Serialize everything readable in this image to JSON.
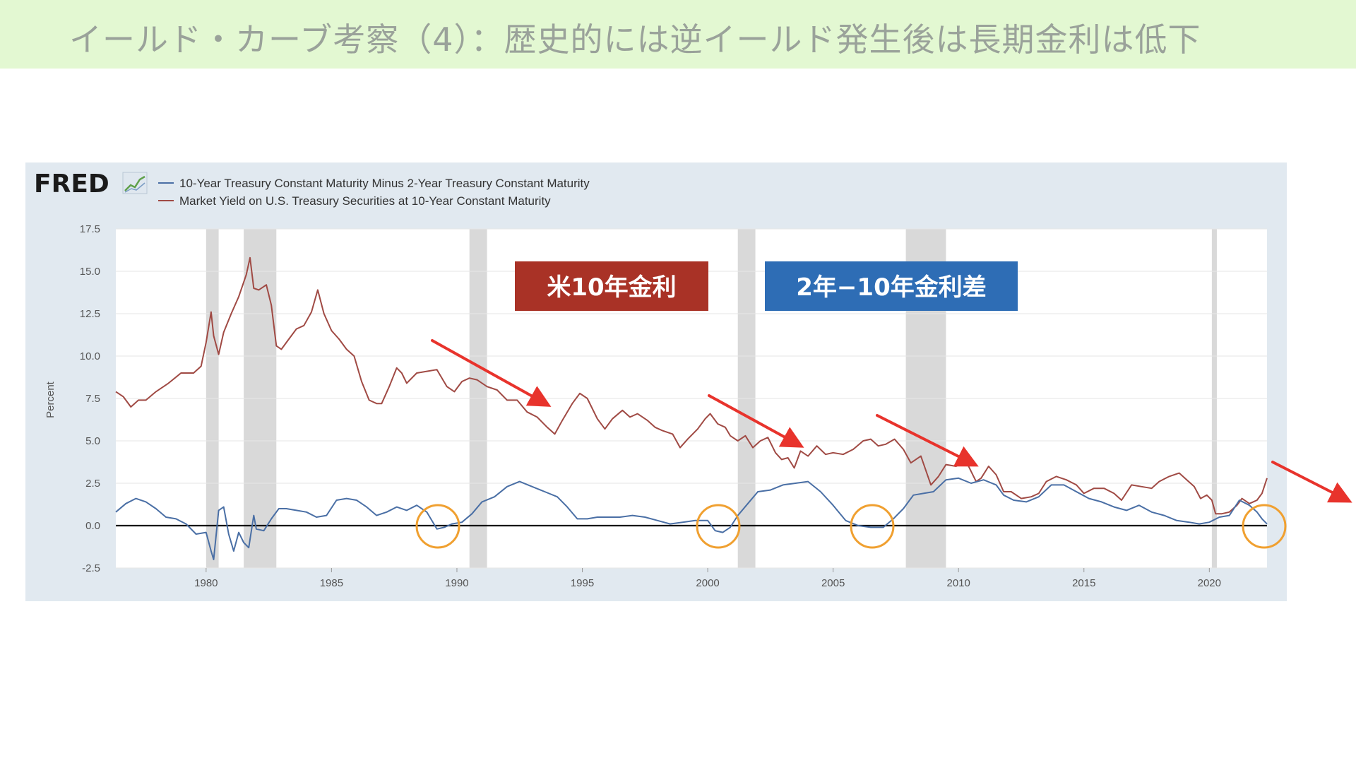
{
  "slide": {
    "title": "イールド・カーブ考察（4）：歴史的には逆イールド発生後は長期金利は低下"
  },
  "logo": {
    "text": "FRED"
  },
  "callouts": {
    "ten_year": {
      "text": "米10年金利",
      "color": "#a93226"
    },
    "spread": {
      "text": "2年−10年金利差",
      "color": "#2e6db5"
    }
  },
  "colors": {
    "ten_year": "#a04a44",
    "spread": "#4a6fa5",
    "recession": "#d9d9d9",
    "arrow": "#e8332c",
    "circle": "#f0a030",
    "zero_line": "#000000"
  },
  "chart_data": {
    "type": "line",
    "title": "",
    "xlabel": "",
    "ylabel": "Percent",
    "xlim": [
      1976.4,
      2022.3
    ],
    "ylim": [
      -2.5,
      17.5
    ],
    "x_ticks": [
      1980,
      1985,
      1990,
      1995,
      2000,
      2005,
      2010,
      2015,
      2020
    ],
    "y_ticks": [
      -2.5,
      0.0,
      2.5,
      5.0,
      7.5,
      10.0,
      12.5,
      15.0,
      17.5
    ],
    "y_tick_labels": [
      "-2.5",
      "0.0",
      "2.5",
      "5.0",
      "7.5",
      "10.0",
      "12.5",
      "15.0",
      "17.5"
    ],
    "legend": "top-left",
    "grid": true,
    "recessions": [
      [
        1980.0,
        1980.5
      ],
      [
        1981.5,
        1982.8
      ],
      [
        1990.5,
        1991.2
      ],
      [
        2001.2,
        2001.9
      ],
      [
        2007.9,
        2009.5
      ],
      [
        2020.1,
        2020.3
      ]
    ],
    "series": [
      {
        "name": "10-Year Treasury Constant Maturity Minus 2-Year Treasury Constant Maturity",
        "points": [
          [
            1976.4,
            0.8
          ],
          [
            1976.8,
            1.3
          ],
          [
            1977.2,
            1.6
          ],
          [
            1977.6,
            1.4
          ],
          [
            1978.0,
            1.0
          ],
          [
            1978.4,
            0.5
          ],
          [
            1978.8,
            0.4
          ],
          [
            1979.2,
            0.1
          ],
          [
            1979.6,
            -0.5
          ],
          [
            1980.0,
            -0.4
          ],
          [
            1980.2,
            -1.5
          ],
          [
            1980.3,
            -2.0
          ],
          [
            1980.5,
            0.9
          ],
          [
            1980.7,
            1.1
          ],
          [
            1980.9,
            -0.5
          ],
          [
            1981.1,
            -1.5
          ],
          [
            1981.3,
            -0.4
          ],
          [
            1981.5,
            -1.0
          ],
          [
            1981.7,
            -1.3
          ],
          [
            1981.9,
            0.6
          ],
          [
            1982.0,
            -0.2
          ],
          [
            1982.3,
            -0.3
          ],
          [
            1982.6,
            0.4
          ],
          [
            1982.9,
            1.0
          ],
          [
            1983.2,
            1.0
          ],
          [
            1983.6,
            0.9
          ],
          [
            1984.0,
            0.8
          ],
          [
            1984.4,
            0.5
          ],
          [
            1984.8,
            0.6
          ],
          [
            1985.2,
            1.5
          ],
          [
            1985.6,
            1.6
          ],
          [
            1986.0,
            1.5
          ],
          [
            1986.4,
            1.1
          ],
          [
            1986.8,
            0.6
          ],
          [
            1987.2,
            0.8
          ],
          [
            1987.6,
            1.1
          ],
          [
            1988.0,
            0.9
          ],
          [
            1988.4,
            1.2
          ],
          [
            1988.8,
            0.8
          ],
          [
            1989.2,
            -0.2
          ],
          [
            1989.5,
            -0.1
          ],
          [
            1989.8,
            0.1
          ],
          [
            1990.2,
            0.2
          ],
          [
            1990.6,
            0.7
          ],
          [
            1991.0,
            1.4
          ],
          [
            1991.5,
            1.7
          ],
          [
            1992.0,
            2.3
          ],
          [
            1992.5,
            2.6
          ],
          [
            1993.0,
            2.3
          ],
          [
            1993.5,
            2.0
          ],
          [
            1994.0,
            1.7
          ],
          [
            1994.4,
            1.1
          ],
          [
            1994.8,
            0.4
          ],
          [
            1995.2,
            0.4
          ],
          [
            1995.6,
            0.5
          ],
          [
            1996.0,
            0.5
          ],
          [
            1996.5,
            0.5
          ],
          [
            1997.0,
            0.6
          ],
          [
            1997.5,
            0.5
          ],
          [
            1998.0,
            0.3
          ],
          [
            1998.5,
            0.1
          ],
          [
            1999.0,
            0.2
          ],
          [
            1999.5,
            0.3
          ],
          [
            2000.0,
            0.3
          ],
          [
            2000.3,
            -0.3
          ],
          [
            2000.6,
            -0.4
          ],
          [
            2000.9,
            -0.1
          ],
          [
            2001.2,
            0.6
          ],
          [
            2001.6,
            1.3
          ],
          [
            2002.0,
            2.0
          ],
          [
            2002.5,
            2.1
          ],
          [
            2003.0,
            2.4
          ],
          [
            2003.5,
            2.5
          ],
          [
            2004.0,
            2.6
          ],
          [
            2004.5,
            2.0
          ],
          [
            2005.0,
            1.2
          ],
          [
            2005.5,
            0.3
          ],
          [
            2006.0,
            0.0
          ],
          [
            2006.5,
            -0.1
          ],
          [
            2007.0,
            -0.1
          ],
          [
            2007.4,
            0.4
          ],
          [
            2007.8,
            1.0
          ],
          [
            2008.2,
            1.8
          ],
          [
            2008.6,
            1.9
          ],
          [
            2009.0,
            2.0
          ],
          [
            2009.5,
            2.7
          ],
          [
            2010.0,
            2.8
          ],
          [
            2010.5,
            2.5
          ],
          [
            2011.0,
            2.7
          ],
          [
            2011.5,
            2.4
          ],
          [
            2011.8,
            1.8
          ],
          [
            2012.2,
            1.5
          ],
          [
            2012.7,
            1.4
          ],
          [
            2013.2,
            1.7
          ],
          [
            2013.7,
            2.4
          ],
          [
            2014.2,
            2.4
          ],
          [
            2014.7,
            2.0
          ],
          [
            2015.2,
            1.6
          ],
          [
            2015.7,
            1.4
          ],
          [
            2016.2,
            1.1
          ],
          [
            2016.7,
            0.9
          ],
          [
            2017.2,
            1.2
          ],
          [
            2017.7,
            0.8
          ],
          [
            2018.2,
            0.6
          ],
          [
            2018.7,
            0.3
          ],
          [
            2019.2,
            0.2
          ],
          [
            2019.6,
            0.1
          ],
          [
            2020.0,
            0.2
          ],
          [
            2020.4,
            0.5
          ],
          [
            2020.8,
            0.6
          ],
          [
            2021.2,
            1.5
          ],
          [
            2021.6,
            1.2
          ],
          [
            2021.9,
            0.8
          ],
          [
            2022.1,
            0.4
          ],
          [
            2022.3,
            0.1
          ]
        ]
      },
      {
        "name": "Market Yield on U.S. Treasury Securities at 10-Year Constant Maturity",
        "points": [
          [
            1976.4,
            7.9
          ],
          [
            1976.7,
            7.6
          ],
          [
            1977.0,
            7.0
          ],
          [
            1977.3,
            7.4
          ],
          [
            1977.6,
            7.4
          ],
          [
            1978.0,
            7.9
          ],
          [
            1978.5,
            8.4
          ],
          [
            1979.0,
            9.0
          ],
          [
            1979.5,
            9.0
          ],
          [
            1979.8,
            9.4
          ],
          [
            1980.0,
            10.8
          ],
          [
            1980.2,
            12.6
          ],
          [
            1980.3,
            11.2
          ],
          [
            1980.5,
            10.1
          ],
          [
            1980.7,
            11.4
          ],
          [
            1981.0,
            12.5
          ],
          [
            1981.3,
            13.5
          ],
          [
            1981.6,
            14.8
          ],
          [
            1981.75,
            15.8
          ],
          [
            1981.9,
            14.0
          ],
          [
            1982.1,
            13.9
          ],
          [
            1982.4,
            14.2
          ],
          [
            1982.6,
            13.0
          ],
          [
            1982.8,
            10.6
          ],
          [
            1983.0,
            10.4
          ],
          [
            1983.3,
            11.0
          ],
          [
            1983.6,
            11.6
          ],
          [
            1983.9,
            11.8
          ],
          [
            1984.2,
            12.6
          ],
          [
            1984.45,
            13.9
          ],
          [
            1984.7,
            12.5
          ],
          [
            1985.0,
            11.5
          ],
          [
            1985.3,
            11.0
          ],
          [
            1985.6,
            10.4
          ],
          [
            1985.9,
            10.0
          ],
          [
            1986.2,
            8.5
          ],
          [
            1986.5,
            7.4
          ],
          [
            1986.8,
            7.2
          ],
          [
            1987.0,
            7.2
          ],
          [
            1987.3,
            8.2
          ],
          [
            1987.6,
            9.3
          ],
          [
            1987.8,
            9.0
          ],
          [
            1988.0,
            8.4
          ],
          [
            1988.4,
            9.0
          ],
          [
            1988.8,
            9.1
          ],
          [
            1989.2,
            9.2
          ],
          [
            1989.6,
            8.2
          ],
          [
            1989.9,
            7.9
          ],
          [
            1990.2,
            8.5
          ],
          [
            1990.5,
            8.7
          ],
          [
            1990.8,
            8.6
          ],
          [
            1991.2,
            8.2
          ],
          [
            1991.6,
            8.0
          ],
          [
            1992.0,
            7.4
          ],
          [
            1992.4,
            7.4
          ],
          [
            1992.8,
            6.7
          ],
          [
            1993.2,
            6.4
          ],
          [
            1993.6,
            5.8
          ],
          [
            1993.9,
            5.4
          ],
          [
            1994.2,
            6.2
          ],
          [
            1994.6,
            7.2
          ],
          [
            1994.9,
            7.8
          ],
          [
            1995.2,
            7.5
          ],
          [
            1995.6,
            6.3
          ],
          [
            1995.9,
            5.7
          ],
          [
            1996.2,
            6.3
          ],
          [
            1996.6,
            6.8
          ],
          [
            1996.9,
            6.4
          ],
          [
            1997.2,
            6.6
          ],
          [
            1997.6,
            6.2
          ],
          [
            1997.9,
            5.8
          ],
          [
            1998.2,
            5.6
          ],
          [
            1998.6,
            5.4
          ],
          [
            1998.9,
            4.6
          ],
          [
            1999.2,
            5.1
          ],
          [
            1999.6,
            5.7
          ],
          [
            1999.9,
            6.3
          ],
          [
            2000.1,
            6.6
          ],
          [
            2000.4,
            6.0
          ],
          [
            2000.7,
            5.8
          ],
          [
            2000.9,
            5.3
          ],
          [
            2001.2,
            5.0
          ],
          [
            2001.5,
            5.3
          ],
          [
            2001.8,
            4.6
          ],
          [
            2002.1,
            5.0
          ],
          [
            2002.4,
            5.2
          ],
          [
            2002.7,
            4.3
          ],
          [
            2002.95,
            3.9
          ],
          [
            2003.2,
            4.0
          ],
          [
            2003.45,
            3.4
          ],
          [
            2003.7,
            4.4
          ],
          [
            2004.0,
            4.1
          ],
          [
            2004.35,
            4.7
          ],
          [
            2004.7,
            4.2
          ],
          [
            2005.0,
            4.3
          ],
          [
            2005.4,
            4.2
          ],
          [
            2005.8,
            4.5
          ],
          [
            2006.2,
            5.0
          ],
          [
            2006.5,
            5.1
          ],
          [
            2006.8,
            4.7
          ],
          [
            2007.1,
            4.8
          ],
          [
            2007.45,
            5.1
          ],
          [
            2007.8,
            4.5
          ],
          [
            2008.1,
            3.7
          ],
          [
            2008.5,
            4.1
          ],
          [
            2008.9,
            2.4
          ],
          [
            2009.2,
            2.9
          ],
          [
            2009.5,
            3.6
          ],
          [
            2009.9,
            3.5
          ],
          [
            2010.3,
            3.8
          ],
          [
            2010.7,
            2.6
          ],
          [
            2010.9,
            2.8
          ],
          [
            2011.2,
            3.5
          ],
          [
            2011.5,
            3.0
          ],
          [
            2011.8,
            2.0
          ],
          [
            2012.1,
            2.0
          ],
          [
            2012.5,
            1.6
          ],
          [
            2012.9,
            1.7
          ],
          [
            2013.2,
            1.9
          ],
          [
            2013.5,
            2.6
          ],
          [
            2013.9,
            2.9
          ],
          [
            2014.3,
            2.7
          ],
          [
            2014.7,
            2.4
          ],
          [
            2015.0,
            1.9
          ],
          [
            2015.4,
            2.2
          ],
          [
            2015.8,
            2.2
          ],
          [
            2016.2,
            1.9
          ],
          [
            2016.5,
            1.5
          ],
          [
            2016.9,
            2.4
          ],
          [
            2017.3,
            2.3
          ],
          [
            2017.7,
            2.2
          ],
          [
            2018.0,
            2.6
          ],
          [
            2018.4,
            2.9
          ],
          [
            2018.8,
            3.1
          ],
          [
            2019.1,
            2.7
          ],
          [
            2019.4,
            2.3
          ],
          [
            2019.65,
            1.6
          ],
          [
            2019.9,
            1.8
          ],
          [
            2020.1,
            1.5
          ],
          [
            2020.25,
            0.7
          ],
          [
            2020.5,
            0.7
          ],
          [
            2020.8,
            0.8
          ],
          [
            2021.1,
            1.2
          ],
          [
            2021.3,
            1.6
          ],
          [
            2021.6,
            1.3
          ],
          [
            2021.9,
            1.5
          ],
          [
            2022.1,
            1.9
          ],
          [
            2022.3,
            2.8
          ]
        ]
      }
    ]
  }
}
